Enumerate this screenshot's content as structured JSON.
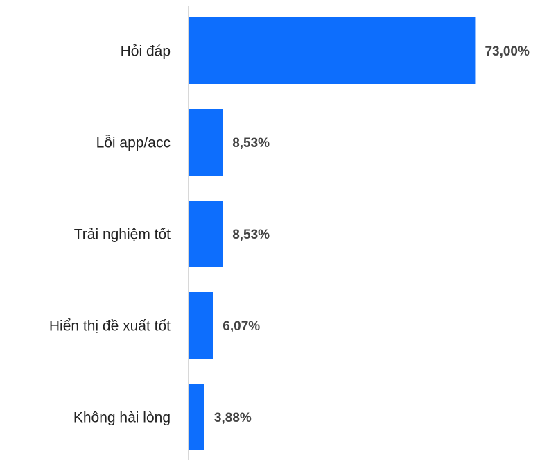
{
  "chart_data": {
    "type": "bar",
    "orientation": "horizontal",
    "categories": [
      "Hỏi đáp",
      "Lỗi app/acc",
      "Trải nghiệm tốt",
      "Hiển thị đề xuất tốt",
      "Không hài lòng"
    ],
    "values": [
      73.0,
      8.53,
      8.53,
      6.07,
      3.88
    ],
    "value_labels": [
      "73,00%",
      "8,53%",
      "8,53%",
      "6,07%",
      "3,88%"
    ],
    "color": "#0d6efd",
    "xlim": [
      0,
      80
    ]
  }
}
